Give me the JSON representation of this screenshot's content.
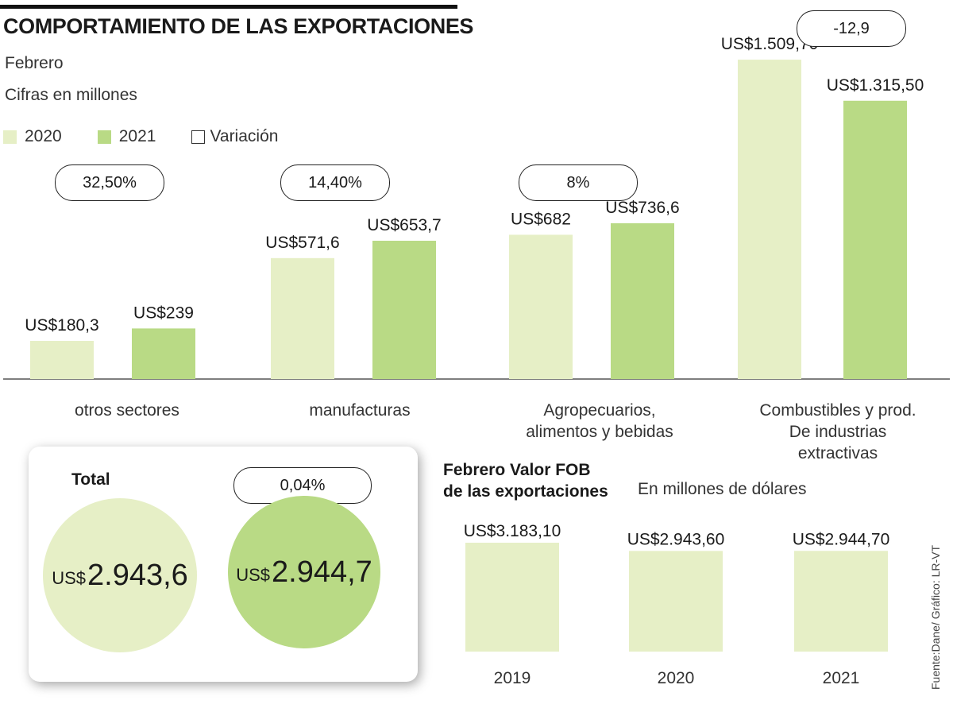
{
  "header": {
    "title": "COMPORTAMIENTO DE LAS EXPORTACIONES",
    "subtitle1": "Febrero",
    "subtitle2": "Cifras en millones"
  },
  "legend": {
    "items": [
      {
        "label": "2020",
        "color": "#e6efc6"
      },
      {
        "label": "2021",
        "color": "#b9da85"
      },
      {
        "label": "Variación",
        "color": "#ffffff"
      }
    ]
  },
  "colors": {
    "y2020": "#e6efc6",
    "y2021": "#b9da85",
    "fob": "#e6efc6"
  },
  "chart_data": [
    {
      "type": "bar",
      "title": "COMPORTAMIENTO DE LAS EXPORTACIONES",
      "subtitle": "Febrero — Cifras en millones",
      "categories": [
        "otros sectores",
        "manufacturas",
        "Agropecuarios, alimentos y bebidas",
        "Combustibles y prod. De industrias extractivas"
      ],
      "category_lines": [
        [
          "otros sectores"
        ],
        [
          "manufacturas"
        ],
        [
          "Agropecuarios,",
          "alimentos y bebidas"
        ],
        [
          "Combustibles y prod.",
          "De industrias",
          "extractivas"
        ]
      ],
      "series": [
        {
          "name": "2020",
          "values": [
            180.3,
            571.6,
            682,
            1509.7
          ],
          "labels": [
            "US$180,3",
            "US$571,6",
            "US$682",
            "US$1.509,70"
          ]
        },
        {
          "name": "2021",
          "values": [
            239,
            653.7,
            736.6,
            1315.5
          ],
          "labels": [
            "US$239",
            "US$653,7",
            "US$736,6",
            "US$1.315,50"
          ]
        }
      ],
      "variation_labels": [
        "32,50%",
        "14,40%",
        "8%",
        "-12,9"
      ],
      "ylim": [
        0,
        1510
      ],
      "grid": false
    },
    {
      "type": "bar",
      "title": "Febrero Valor FOB de las exportaciones",
      "subtitle": "En millones de dólares",
      "categories": [
        "2019",
        "2020",
        "2021"
      ],
      "values": [
        3183.1,
        2943.6,
        2944.7
      ],
      "labels": [
        "US$3.183,10",
        "US$2.943,60",
        "US$2.944,70"
      ],
      "ylim": [
        0,
        3183.1
      ],
      "grid": false
    }
  ],
  "total": {
    "label": "Total",
    "variation": "0,04%",
    "value_2020": {
      "currency": "US$",
      "amount": "2.943,6"
    },
    "value_2021": {
      "currency": "US$",
      "amount": "2.944,7"
    }
  },
  "fob": {
    "title_line1": "Febrero Valor FOB",
    "title_line2": "de las exportaciones",
    "subtitle": "En millones de dólares"
  },
  "source": "Fuente:Dane/ Gráfico: LR-VT"
}
